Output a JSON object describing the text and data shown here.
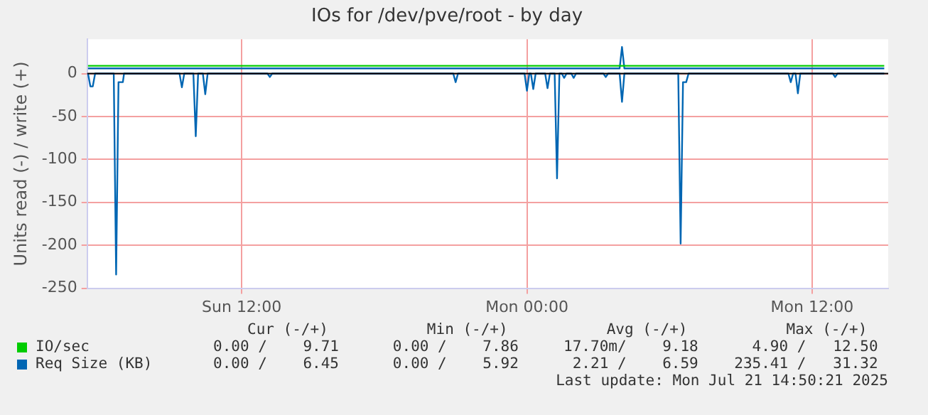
{
  "chart_data": {
    "type": "line",
    "title": "IOs for /dev/pve/root - by day",
    "ylabel": "Units read (-) / write (+)",
    "xlim": [
      "2025-07-20T05:30",
      "2025-07-21T15:12"
    ],
    "xticks": [
      {
        "value": "2025-07-20T12:00",
        "label": "Sun 12:00"
      },
      {
        "value": "2025-07-21T00:00",
        "label": "Mon 00:00"
      },
      {
        "value": "2025-07-21T12:00",
        "label": "Mon 12:00"
      }
    ],
    "ylim": [
      -250,
      40
    ],
    "yticks": [
      -250,
      -200,
      -150,
      -100,
      -50,
      0
    ],
    "grid": true,
    "legend": "bottom left",
    "marker": "none",
    "line_style": "solid",
    "ref_lines": [
      {
        "axis": "y",
        "value": 0,
        "color": "#000000"
      }
    ],
    "series": [
      {
        "name": "IO/sec",
        "color": "#00cc00",
        "x": [
          "2025-07-20T05:32",
          "2025-07-20T10:00",
          "2025-07-20T15:00",
          "2025-07-20T20:00",
          "2025-07-21T01:00",
          "2025-07-21T04:00",
          "2025-07-21T06:00",
          "2025-07-21T11:00",
          "2025-07-21T15:02"
        ],
        "values": [
          9,
          9,
          9,
          9,
          9,
          9,
          9,
          9,
          9
        ]
      },
      {
        "name": "Req Size (KB)",
        "color": "#0066b3",
        "x": [
          "2025-07-20T05:32",
          "2025-07-20T15:00",
          "2025-07-21T03:54",
          "2025-07-21T04:00",
          "2025-07-21T04:06",
          "2025-07-21T11:00",
          "2025-07-21T15:02"
        ],
        "values": [
          6,
          6,
          6,
          31,
          6,
          6,
          6
        ]
      },
      {
        "color": "#0066b3",
        "x": [
          "2025-07-20T05:32",
          "2025-07-20T05:38",
          "2025-07-20T05:44",
          "2025-07-20T05:50",
          "2025-07-20T06:37",
          "2025-07-20T06:43",
          "2025-07-20T06:49",
          "2025-07-20T07:00",
          "2025-07-20T07:03",
          "2025-07-20T09:23",
          "2025-07-20T09:29",
          "2025-07-20T09:35",
          "2025-07-20T09:58",
          "2025-07-20T10:04",
          "2025-07-20T10:10",
          "2025-07-20T10:22",
          "2025-07-20T10:28",
          "2025-07-20T10:34",
          "2025-07-20T13:05",
          "2025-07-20T13:11",
          "2025-07-20T13:17",
          "2025-07-20T20:54",
          "2025-07-20T21:00",
          "2025-07-20T21:06",
          "2025-07-20T23:54",
          "2025-07-21T00:00",
          "2025-07-21T00:06",
          "2025-07-21T00:10",
          "2025-07-21T00:16",
          "2025-07-21T00:22",
          "2025-07-21T00:46",
          "2025-07-21T00:52",
          "2025-07-21T00:58",
          "2025-07-21T01:10",
          "2025-07-21T01:16",
          "2025-07-21T01:22",
          "2025-07-21T01:28",
          "2025-07-21T01:34",
          "2025-07-21T01:40",
          "2025-07-21T01:52",
          "2025-07-21T01:58",
          "2025-07-21T02:04",
          "2025-07-21T03:13",
          "2025-07-21T03:19",
          "2025-07-21T03:25",
          "2025-07-21T03:54",
          "2025-07-21T04:00",
          "2025-07-21T04:06",
          "2025-07-21T06:22",
          "2025-07-21T06:28",
          "2025-07-21T06:34",
          "2025-07-21T06:42",
          "2025-07-21T06:48",
          "2025-07-21T11:00",
          "2025-07-21T11:06",
          "2025-07-21T11:12",
          "2025-07-21T11:18",
          "2025-07-21T11:24",
          "2025-07-21T11:30",
          "2025-07-21T12:52",
          "2025-07-21T12:58",
          "2025-07-21T13:04",
          "2025-07-21T15:02"
        ],
        "values": [
          0,
          -15,
          -15,
          0,
          0,
          -234,
          -10,
          -10,
          0,
          0,
          -16,
          0,
          0,
          -73,
          0,
          0,
          -24,
          0,
          0,
          -4,
          0,
          0,
          -10,
          0,
          0,
          -20,
          0,
          0,
          -18,
          0,
          0,
          -17,
          0,
          0,
          -122,
          0,
          0,
          -5,
          0,
          0,
          -5,
          0,
          0,
          -4,
          0,
          0,
          -33,
          0,
          0,
          -198,
          -10,
          -10,
          0,
          0,
          -10,
          0,
          0,
          -23,
          0,
          0,
          -4,
          0,
          0
        ]
      }
    ],
    "annotations": [
      "Cur (-/+)           Min (-/+)           Avg (-/+)           Max (-/+)",
      "0.00 /    9.71      0.00 /    7.86     17.70m/    9.18      4.90 /   12.50",
      "0.00 /    6.45      0.00 /    5.92      2.21 /    6.59    235.41 /   31.32",
      "Last update: Mon Jul 21 14:50:21 2025"
    ]
  }
}
